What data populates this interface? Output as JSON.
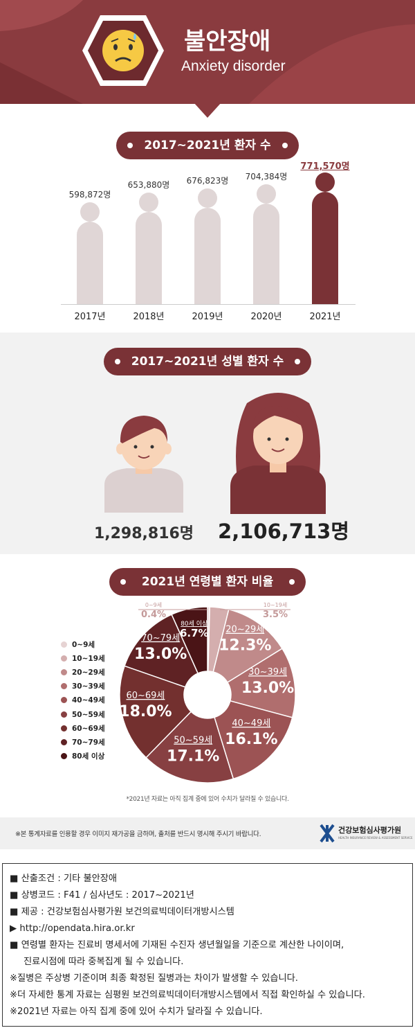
{
  "header": {
    "title": "불안장애",
    "subtitle": "Anxiety disorder"
  },
  "section1": {
    "title": "2017~2021년 환자 수"
  },
  "yearly_chart": {
    "type": "bar",
    "categories": [
      "2017년",
      "2018년",
      "2019년",
      "2020년",
      "2021년"
    ],
    "values": [
      598872,
      653880,
      676823,
      704384,
      771570
    ],
    "value_labels": [
      "598,872명",
      "653,880명",
      "676,823명",
      "704,384명",
      "771,570명"
    ],
    "highlight_index": 4
  },
  "section2": {
    "title": "2017~2021년 성별 환자 수"
  },
  "gender": {
    "male_count": "1,298,816명",
    "female_count": "2,106,713명"
  },
  "section3": {
    "title": "2021년 연령별 환자 비율"
  },
  "chart_data": {
    "type": "pie",
    "categories": [
      "0~9세",
      "10~19세",
      "20~29세",
      "30~39세",
      "40~49세",
      "50~59세",
      "60~69세",
      "70~79세",
      "80세 이상"
    ],
    "values": [
      0.4,
      3.5,
      12.3,
      13.0,
      16.1,
      17.1,
      18.0,
      13.0,
      6.7
    ],
    "value_labels": [
      "0.4%",
      "3.5%",
      "12.3%",
      "13.0%",
      "16.1%",
      "17.1%",
      "18.0%",
      "13.0%",
      "6.7%"
    ],
    "colors": [
      "#e6d3d3",
      "#d4aeae",
      "#c08a8a",
      "#b06e6e",
      "#9c5354",
      "#874042",
      "#73302f",
      "#5f2224",
      "#4a1416"
    ],
    "legend_labels": [
      "0~9세",
      "10~19세",
      "20~29세",
      "30~39세",
      "40~49세",
      "50~59세",
      "60~69세",
      "70~79세",
      "80세 이상"
    ],
    "legend_position": "left"
  },
  "chart_note": "*2021년 자료는 아직 집계 중에 있어 수치가 달라질 수 있습니다.",
  "footer": {
    "copyright": "※본 통계자료를 인용할 경우 이미지 재가공을 금하며, 출처를 반드시 명시해 주시기 바랍니다.",
    "org_name": "건강보험심사평가원",
    "org_sub": "HEALTH INSURANCE REVIEW & ASSESSMENT SERVICE"
  },
  "notes": [
    "■ 산출조건 : 기타 불안장애",
    "■ 상병코드 : F41 / 심사년도 : 2017~2021년",
    "■ 제공 : 건강보험심사평가원 보건의료빅데이터개방시스템",
    "▶ http://opendata.hira.or.kr",
    "■ 연령별 환자는 진료비 명세서에 기재된 수진자 생년월일을 기준으로 계산한 나이이며,",
    "진료시점에 따라 중복집계 될 수 있습니다.",
    "※질병은 주상병 기준이며 최종 확정된 질병과는 차이가 발생할 수 있습니다.",
    "※더 자세한 통계 자료는 심평원 보건의료빅데이터개방시스템에서 직접 확인하실 수 있습니다.",
    "※2021년 자료는 아직 집계 중에 있어 수치가 달라질 수 있습니다."
  ]
}
